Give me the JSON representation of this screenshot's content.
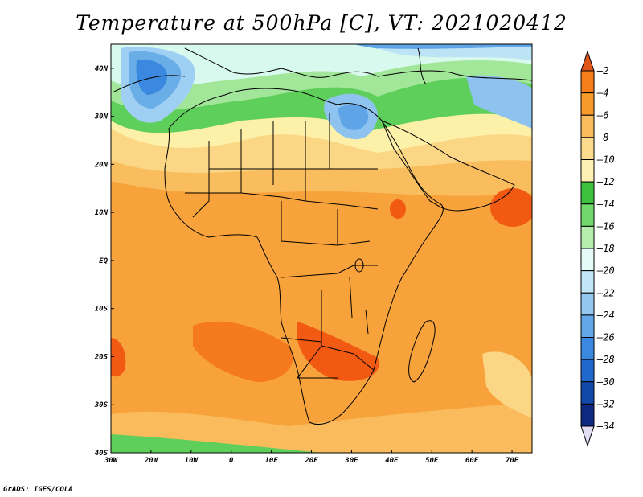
{
  "title": "Temperature at 500hPa [C], VT: 2021020412",
  "credit": "GrADS: IGES/COLA",
  "map": {
    "region": "Africa",
    "lon_range": [
      -30,
      75
    ],
    "lat_range": [
      -40,
      45
    ],
    "lon_ticks": [
      {
        "lon": -30,
        "label": "30W"
      },
      {
        "lon": -20,
        "label": "20W"
      },
      {
        "lon": -10,
        "label": "10W"
      },
      {
        "lon": 0,
        "label": "0"
      },
      {
        "lon": 10,
        "label": "10E"
      },
      {
        "lon": 20,
        "label": "20E"
      },
      {
        "lon": 30,
        "label": "30E"
      },
      {
        "lon": 40,
        "label": "40E"
      },
      {
        "lon": 50,
        "label": "50E"
      },
      {
        "lon": 60,
        "label": "60E"
      },
      {
        "lon": 70,
        "label": "70E"
      }
    ],
    "lat_ticks": [
      {
        "lat": 40,
        "label": "40N"
      },
      {
        "lat": 30,
        "label": "30N"
      },
      {
        "lat": 20,
        "label": "20N"
      },
      {
        "lat": 10,
        "label": "10N"
      },
      {
        "lat": 0,
        "label": "EQ"
      },
      {
        "lat": -10,
        "label": "10S"
      },
      {
        "lat": -20,
        "label": "20S"
      },
      {
        "lat": -30,
        "label": "30S"
      },
      {
        "lat": -40,
        "label": "40S"
      }
    ]
  },
  "colorbar": {
    "levels": [
      {
        "label": "-2",
        "color": "#a01a0a"
      },
      {
        "label": "-4",
        "color": "#f25a14"
      },
      {
        "label": "-6",
        "color": "#f7921e"
      },
      {
        "label": "-8",
        "color": "#f9b24b"
      },
      {
        "label": "-10",
        "color": "#fbd47e"
      },
      {
        "label": "-12",
        "color": "#fdf0a8"
      },
      {
        "label": "-14",
        "color": "#3cbe3c"
      },
      {
        "label": "-16",
        "color": "#6cd56a"
      },
      {
        "label": "-18",
        "color": "#b4ecaa"
      },
      {
        "label": "-20",
        "color": "#e2fbf4"
      },
      {
        "label": "-22",
        "color": "#bde4f6"
      },
      {
        "label": "-24",
        "color": "#8dc3ee"
      },
      {
        "label": "-26",
        "color": "#5ea4e6"
      },
      {
        "label": "-28",
        "color": "#3383dc"
      },
      {
        "label": "-30",
        "color": "#1c63c8"
      },
      {
        "label": "-32",
        "color": "#0f3ea0"
      },
      {
        "label": "-34",
        "color": "#0a1f78"
      }
    ],
    "bins": [
      "#e25518",
      "#f57e1a",
      "#f79a2a",
      "#f9bb5c",
      "#fbdc8d",
      "#fdf2b4",
      "#3ec23e",
      "#70d86c",
      "#b6ecac",
      "#e4fbf6",
      "#c0e6f8",
      "#94c7f0",
      "#63a7e8",
      "#3a88df",
      "#2068cc",
      "#1248a8",
      "#0c2880",
      "#e2dcf4"
    ]
  },
  "colors": {
    "ocean_base": "#f5a63c",
    "coast": "#000000"
  }
}
